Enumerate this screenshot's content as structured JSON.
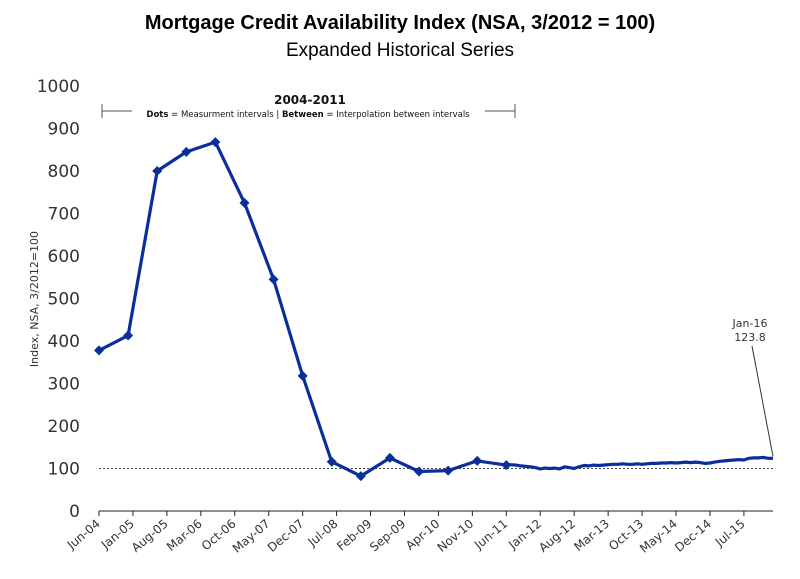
{
  "chart_data": {
    "type": "line",
    "title": "Mortgage Credit Availability Index (NSA, 3/2012 = 100)",
    "subtitle": "Expanded Historical Series",
    "ylabel": "Index, NSA, 3/2012=100",
    "ylim": [
      0,
      1000
    ],
    "yticks": [
      0,
      100,
      200,
      300,
      400,
      500,
      600,
      700,
      800,
      900,
      1000
    ],
    "x_tick_labels": [
      "Jun-04",
      "Jan-05",
      "Aug-05",
      "Mar-06",
      "Oct-06",
      "May-07",
      "Dec-07",
      "Jul-08",
      "Feb-09",
      "Sep-09",
      "Apr-10",
      "Nov-10",
      "Jun-11",
      "Jan-12",
      "Aug-12",
      "Mar-13",
      "Oct-13",
      "May-14",
      "Dec-14",
      "Jul-15"
    ],
    "x_range": [
      "2004-06",
      "2016-01"
    ],
    "reference_line": 100,
    "note": {
      "period": "2004-2011",
      "dots_label": "Dots",
      "dots_text": "= Measurment intervals",
      "separator": "|",
      "between_label": "Between",
      "between_text": "= Interpolation between intervals"
    },
    "annotation": {
      "label": "Jan-16",
      "value": "123.8"
    },
    "line_color": "#0a2f9c",
    "series": [
      {
        "measured_points": [
          {
            "x": "2004-06",
            "y": 378
          },
          {
            "x": "2004-12",
            "y": 413
          },
          {
            "x": "2005-06",
            "y": 800
          },
          {
            "x": "2005-12",
            "y": 845
          },
          {
            "x": "2006-06",
            "y": 868
          },
          {
            "x": "2006-12",
            "y": 725
          },
          {
            "x": "2007-06",
            "y": 545
          },
          {
            "x": "2007-12",
            "y": 318
          },
          {
            "x": "2008-06",
            "y": 116
          },
          {
            "x": "2008-12",
            "y": 82
          },
          {
            "x": "2009-06",
            "y": 125
          },
          {
            "x": "2009-12",
            "y": 93
          },
          {
            "x": "2010-06",
            "y": 95
          },
          {
            "x": "2010-12",
            "y": 118
          },
          {
            "x": "2011-06",
            "y": 108
          }
        ],
        "monthly_points": [
          {
            "x": "2011-07",
            "y": 109
          },
          {
            "x": "2011-08",
            "y": 108
          },
          {
            "x": "2011-09",
            "y": 106
          },
          {
            "x": "2011-10",
            "y": 105
          },
          {
            "x": "2011-11",
            "y": 104
          },
          {
            "x": "2011-12",
            "y": 102
          },
          {
            "x": "2012-01",
            "y": 99
          },
          {
            "x": "2012-02",
            "y": 101
          },
          {
            "x": "2012-03",
            "y": 100
          },
          {
            "x": "2012-04",
            "y": 101
          },
          {
            "x": "2012-05",
            "y": 99
          },
          {
            "x": "2012-06",
            "y": 104
          },
          {
            "x": "2012-07",
            "y": 102
          },
          {
            "x": "2012-08",
            "y": 100
          },
          {
            "x": "2012-09",
            "y": 104
          },
          {
            "x": "2012-10",
            "y": 107
          },
          {
            "x": "2012-11",
            "y": 106
          },
          {
            "x": "2012-12",
            "y": 108
          },
          {
            "x": "2013-01",
            "y": 107
          },
          {
            "x": "2013-02",
            "y": 108
          },
          {
            "x": "2013-03",
            "y": 109
          },
          {
            "x": "2013-04",
            "y": 110
          },
          {
            "x": "2013-05",
            "y": 110
          },
          {
            "x": "2013-06",
            "y": 111
          },
          {
            "x": "2013-07",
            "y": 110
          },
          {
            "x": "2013-08",
            "y": 110
          },
          {
            "x": "2013-09",
            "y": 111
          },
          {
            "x": "2013-10",
            "y": 110
          },
          {
            "x": "2013-11",
            "y": 111
          },
          {
            "x": "2013-12",
            "y": 112
          },
          {
            "x": "2014-01",
            "y": 112
          },
          {
            "x": "2014-02",
            "y": 113
          },
          {
            "x": "2014-03",
            "y": 113
          },
          {
            "x": "2014-04",
            "y": 114
          },
          {
            "x": "2014-05",
            "y": 113
          },
          {
            "x": "2014-06",
            "y": 114
          },
          {
            "x": "2014-07",
            "y": 115
          },
          {
            "x": "2014-08",
            "y": 114
          },
          {
            "x": "2014-09",
            "y": 115
          },
          {
            "x": "2014-10",
            "y": 114
          },
          {
            "x": "2014-11",
            "y": 112
          },
          {
            "x": "2014-12",
            "y": 113
          },
          {
            "x": "2015-01",
            "y": 115
          },
          {
            "x": "2015-02",
            "y": 117
          },
          {
            "x": "2015-03",
            "y": 118
          },
          {
            "x": "2015-04",
            "y": 119
          },
          {
            "x": "2015-05",
            "y": 120
          },
          {
            "x": "2015-06",
            "y": 121
          },
          {
            "x": "2015-07",
            "y": 120
          },
          {
            "x": "2015-08",
            "y": 124
          },
          {
            "x": "2015-09",
            "y": 125
          },
          {
            "x": "2015-10",
            "y": 125
          },
          {
            "x": "2015-11",
            "y": 126
          },
          {
            "x": "2015-12",
            "y": 124
          },
          {
            "x": "2016-01",
            "y": 123.8
          }
        ]
      }
    ]
  }
}
